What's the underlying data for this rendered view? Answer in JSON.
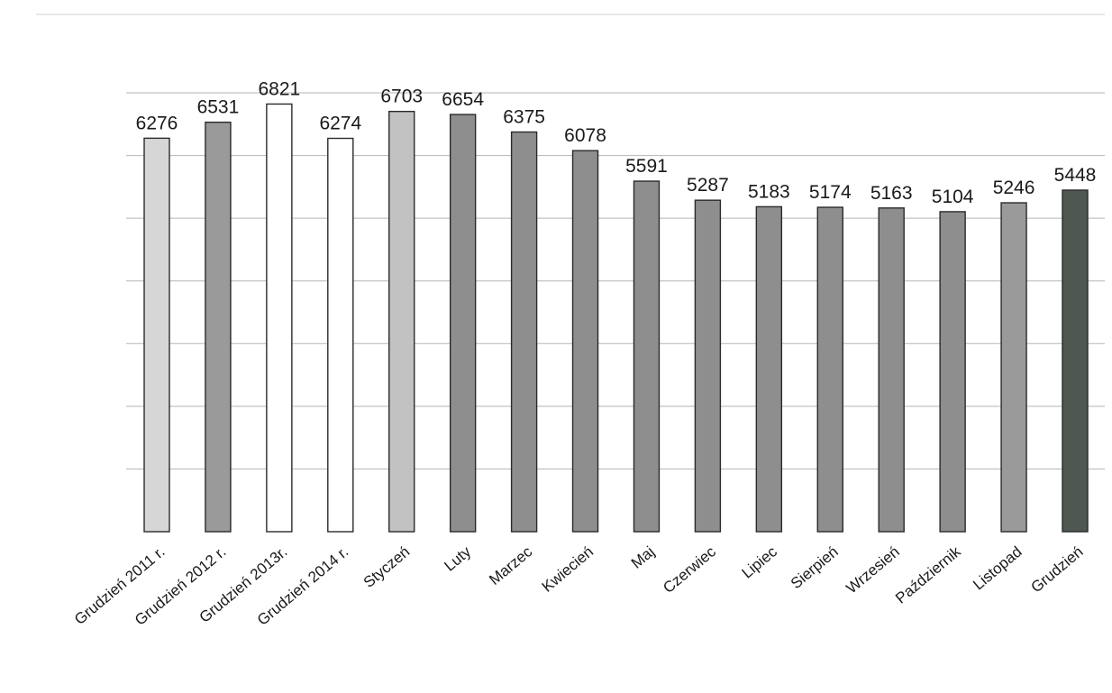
{
  "chart_data": {
    "type": "bar",
    "title": "",
    "xlabel": "",
    "ylabel": "",
    "categories": [
      "Grudzień 2011 r.",
      "Grudzień 2012 r.",
      "Grudzień 2013r.",
      "Grudzień 2014 r.",
      "Styczeń",
      "Luty",
      "Marzec",
      "Kwiecień",
      "Maj",
      "Czerwiec",
      "Lipiec",
      "Sierpień",
      "Wrzesień",
      "Październik",
      "Listopad",
      "Grudzień"
    ],
    "values": [
      6276,
      6531,
      6821,
      6274,
      6703,
      6654,
      6375,
      6078,
      5591,
      5287,
      5183,
      5174,
      5163,
      5104,
      5246,
      5448
    ],
    "data_labels": [
      "6276",
      "6531",
      "6821",
      "6274",
      "6703",
      "6654",
      "6375",
      "6078",
      "5591",
      "5287",
      "5183",
      "5174",
      "5163",
      "5104",
      "5246",
      "5448"
    ],
    "bar_colors": [
      "#d6d6d6",
      "#9a9a9a",
      "#ffffff",
      "#ffffff",
      "#c2c2c2",
      "#8e8e8e",
      "#8e8e8e",
      "#8e8e8e",
      "#8e8e8e",
      "#8e8e8e",
      "#8e8e8e",
      "#8e8e8e",
      "#8e8e8e",
      "#8e8e8e",
      "#9a9a9a",
      "#4f5751"
    ],
    "ylim": [
      0,
      7000
    ],
    "gridlines": [
      1000,
      2000,
      3000,
      4000,
      5000,
      6000,
      7000
    ],
    "grid": true,
    "legend": "none",
    "y_axis_labels_shown": false
  }
}
